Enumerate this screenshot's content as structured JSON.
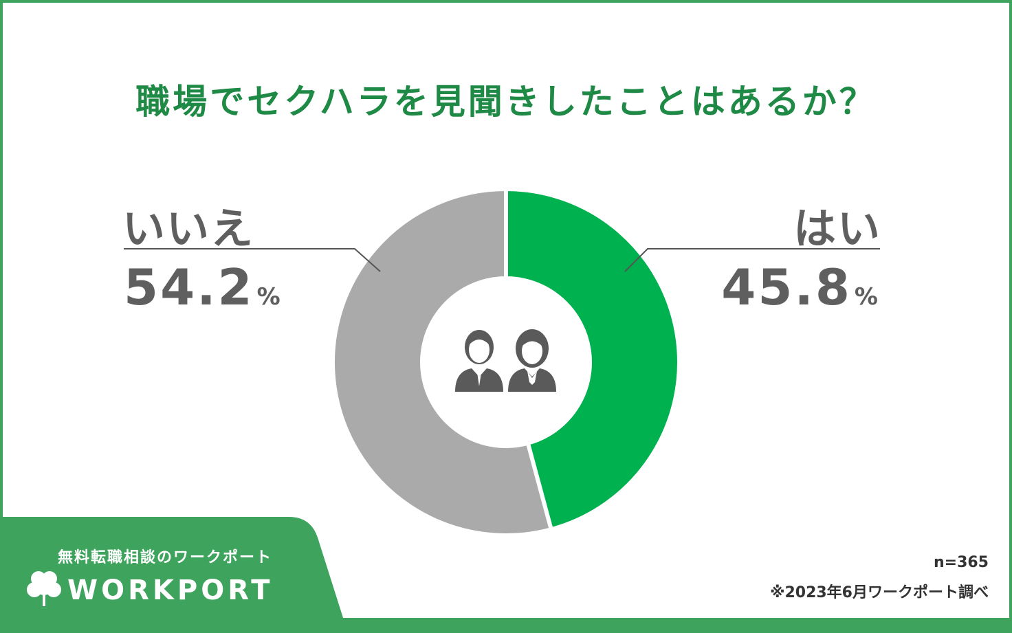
{
  "chart_data": {
    "type": "pie",
    "title": "職場でセクハラを見聞きしたことはあるか？",
    "categories": [
      "はい",
      "いいえ"
    ],
    "values": [
      45.8,
      54.2
    ],
    "value_labels": [
      "45.8",
      "54.2"
    ],
    "unit": "%",
    "colors": [
      "#00b14f",
      "#aaaaaa"
    ],
    "donut": true,
    "center_icon": "two-people-icon",
    "sample_note": "n=365",
    "source_note": "※2023年6月ワークポート調べ"
  },
  "branding": {
    "tagline": "無料転職相談のワークポート",
    "logo_text": "WORKPORT",
    "logo_icon": "clover-icon",
    "panel_color": "#3ea35d"
  }
}
